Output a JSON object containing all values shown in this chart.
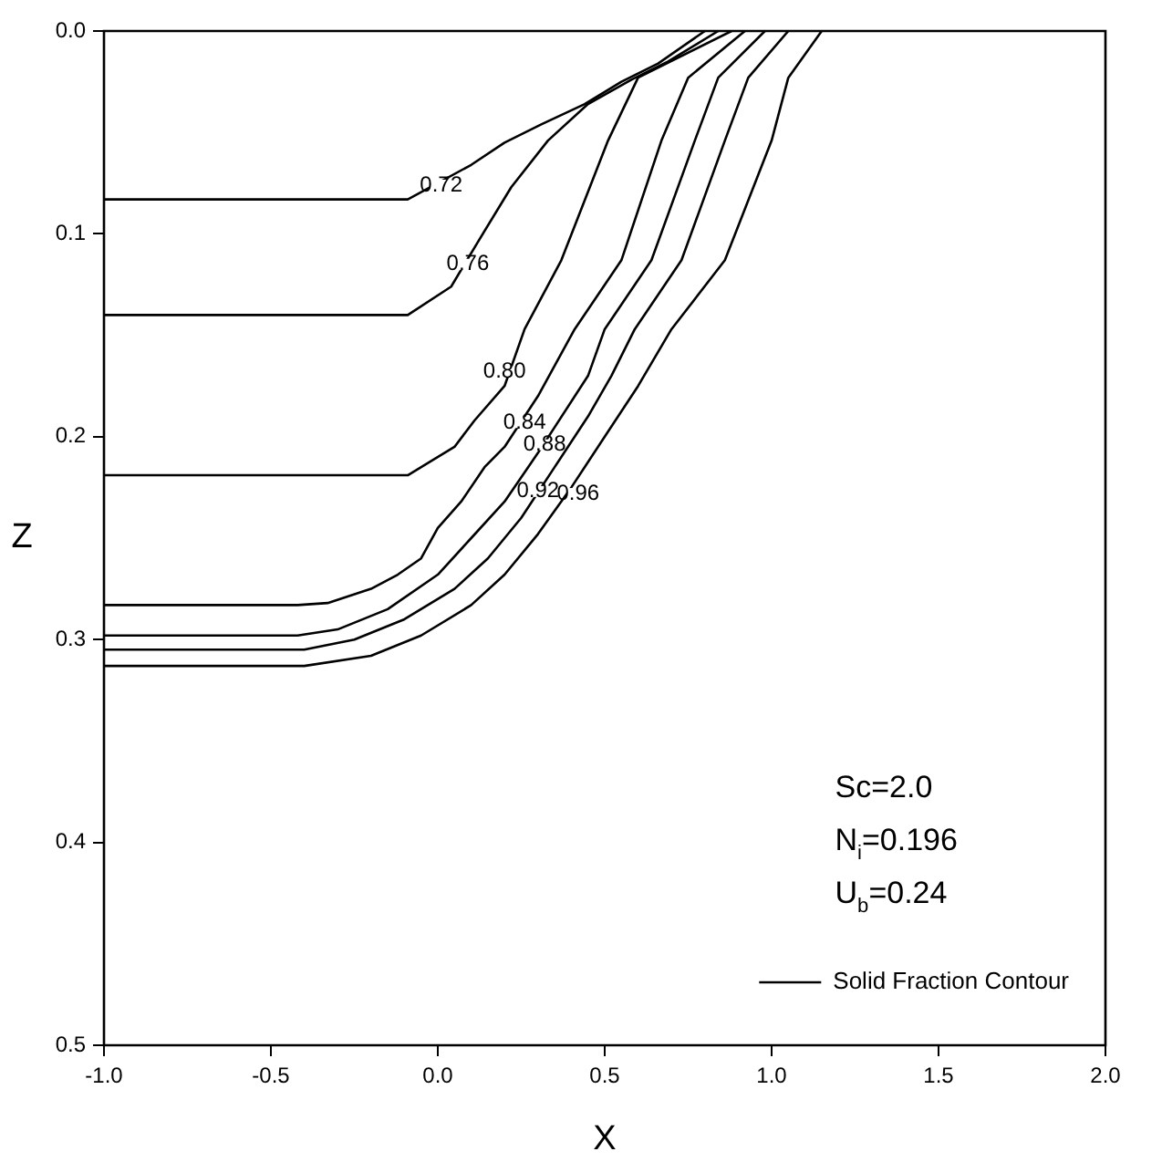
{
  "chart_data": {
    "type": "line",
    "xlabel": "X",
    "ylabel": "Z",
    "legend": "bottom right",
    "marker": "none",
    "line_style": "solid",
    "grid": false,
    "xlim": [
      -1,
      2
    ],
    "xticks": [
      {
        "value": -1,
        "label": "-1.0"
      },
      {
        "value": -0.5,
        "label": "-0.5"
      },
      {
        "value": 0,
        "label": "0.0"
      },
      {
        "value": 0.5,
        "label": "0.5"
      },
      {
        "value": 1,
        "label": "1.0"
      },
      {
        "value": 1.5,
        "label": "1.5"
      },
      {
        "value": 2,
        "label": "2.0"
      }
    ],
    "ylim": [
      0.5,
      0
    ],
    "yticks": [
      {
        "value": 0,
        "label": "0.0"
      },
      {
        "value": 0.1,
        "label": "0.1"
      },
      {
        "value": 0.2,
        "label": "0.2"
      },
      {
        "value": 0.3,
        "label": "0.3"
      },
      {
        "value": 0.4,
        "label": "0.4"
      },
      {
        "value": 0.5,
        "label": "0.5"
      }
    ],
    "annotations": [
      "Sc=2.0",
      "N$_{i}$=0.196",
      "U$_{b}$=0.24",
      {
        "text": "0.72",
        "x": 0.01,
        "y": 0.076
      },
      {
        "text": "0.76",
        "x": 0.09,
        "y": 0.115
      },
      {
        "text": "0.80",
        "x": 0.2,
        "y": 0.168
      },
      {
        "text": "0.84",
        "x": 0.26,
        "y": 0.193
      },
      {
        "text": "0.88",
        "x": 0.32,
        "y": 0.204
      },
      {
        "text": "0.92",
        "x": 0.3,
        "y": 0.227
      },
      {
        "text": "0.96",
        "x": 0.42,
        "y": 0.228
      }
    ],
    "series": [
      {
        "name": "Solid Fraction Contour",
        "color": "#000000",
        "x": [
          -1,
          -0.09,
          0.1,
          0.2,
          0.31,
          0.44,
          0.55,
          0.66,
          0.8
        ],
        "values": [
          0.083,
          0.083,
          0.066,
          0.055,
          0.046,
          0.036,
          0.025,
          0.016,
          0
        ]
      },
      {
        "color": "#000000",
        "x": [
          -1,
          -0.09,
          0.04,
          0.12,
          0.22,
          0.33,
          0.45,
          0.58,
          0.69,
          0.84
        ],
        "values": [
          0.14,
          0.14,
          0.126,
          0.104,
          0.077,
          0.054,
          0.036,
          0.024,
          0.015,
          0
        ]
      },
      {
        "color": "#000000",
        "x": [
          -1,
          -0.09,
          0.05,
          0.11,
          0.2,
          0.26,
          0.37,
          0.51,
          0.6,
          0.88
        ],
        "values": [
          0.219,
          0.219,
          0.205,
          0.192,
          0.175,
          0.147,
          0.113,
          0.054,
          0.023,
          0
        ]
      },
      {
        "color": "#000000",
        "x": [
          -1,
          -0.42,
          -0.33,
          -0.2,
          -0.12,
          -0.05,
          0,
          0.07,
          0.14,
          0.2,
          0.3,
          0.41,
          0.55,
          0.67,
          0.75,
          0.92
        ],
        "values": [
          0.283,
          0.283,
          0.282,
          0.275,
          0.268,
          0.26,
          0.245,
          0.232,
          0.215,
          0.205,
          0.18,
          0.147,
          0.113,
          0.054,
          0.023,
          0
        ]
      },
      {
        "color": "#000000",
        "x": [
          -1,
          -0.42,
          -0.3,
          -0.15,
          0,
          0.1,
          0.2,
          0.3,
          0.45,
          0.5,
          0.64,
          0.77,
          0.84,
          0.98
        ],
        "values": [
          0.298,
          0.298,
          0.295,
          0.285,
          0.268,
          0.25,
          0.232,
          0.208,
          0.17,
          0.147,
          0.113,
          0.054,
          0.023,
          0
        ]
      },
      {
        "color": "#000000",
        "x": [
          -1,
          -0.4,
          -0.25,
          -0.1,
          0.05,
          0.15,
          0.25,
          0.35,
          0.45,
          0.52,
          0.59,
          0.73,
          0.86,
          0.93,
          1.05
        ],
        "values": [
          0.305,
          0.305,
          0.3,
          0.29,
          0.275,
          0.26,
          0.24,
          0.215,
          0.19,
          0.17,
          0.147,
          0.113,
          0.054,
          0.023,
          0
        ]
      },
      {
        "color": "#000000",
        "x": [
          -1,
          -0.4,
          -0.2,
          -0.05,
          0.1,
          0.2,
          0.3,
          0.4,
          0.5,
          0.6,
          0.7,
          0.86,
          1,
          1.05,
          1.15
        ],
        "values": [
          0.313,
          0.313,
          0.308,
          0.298,
          0.283,
          0.268,
          0.248,
          0.225,
          0.2,
          0.175,
          0.147,
          0.113,
          0.054,
          0.023,
          0
        ]
      }
    ]
  }
}
